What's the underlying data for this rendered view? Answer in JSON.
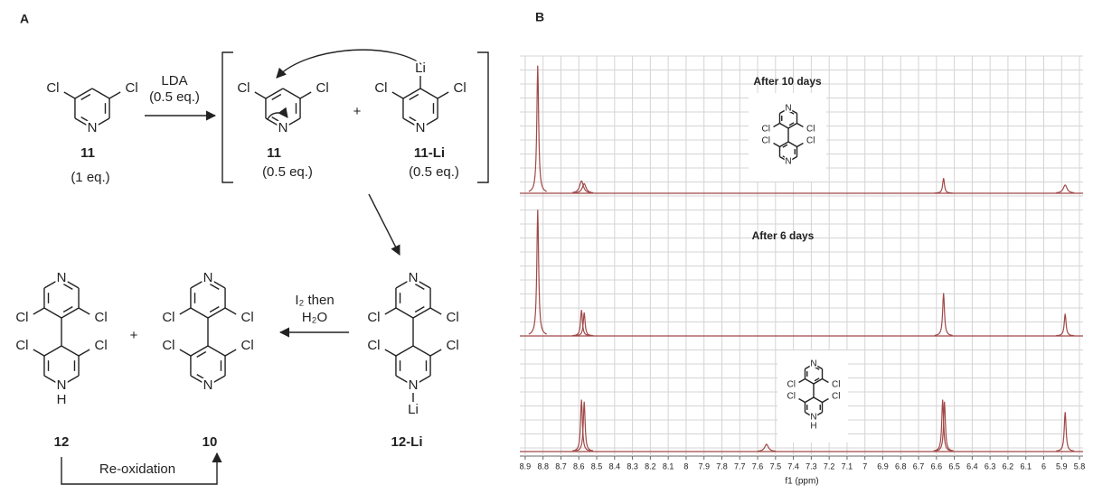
{
  "panel_a": {
    "label": "A",
    "reactant": {
      "atoms": [
        "Cl",
        "Cl",
        "N"
      ],
      "label": "11",
      "amount": "(1 eq.)"
    },
    "step1": {
      "reagent": "LDA",
      "amount": "(0.5 eq.)"
    },
    "intermediate_1": {
      "atoms": [
        "Cl",
        "Cl",
        "N"
      ],
      "label": "11",
      "amount": "(0.5 eq.)"
    },
    "plus_1": "+",
    "intermediate_2": {
      "atoms": [
        "Li",
        "Cl",
        "Cl",
        "N"
      ],
      "label": "11-Li",
      "amount": "(0.5 eq.)"
    },
    "intermediate_3": {
      "atoms": [
        "N",
        "Cl",
        "Cl",
        "Cl",
        "Cl",
        "N",
        "Li"
      ],
      "label": "12-Li"
    },
    "step2": {
      "reagent_1": "I₂ then",
      "reagent_2": "H₂O"
    },
    "product_10": {
      "atoms": [
        "N",
        "Cl",
        "Cl",
        "Cl",
        "Cl",
        "N"
      ],
      "label": "10"
    },
    "plus_2": "+",
    "product_12": {
      "atoms": [
        "N",
        "Cl",
        "Cl",
        "Cl",
        "Cl",
        "N",
        "H"
      ],
      "label": "12"
    },
    "step3": "Re-oxidation"
  },
  "panel_b": {
    "label": "B",
    "x_axis": {
      "label": "f1 (ppm)",
      "lim": [
        8.93,
        5.78
      ],
      "ticks": [
        8.9,
        8.8,
        8.7,
        8.6,
        8.5,
        8.4,
        8.3,
        8.2,
        8.1,
        8.0,
        7.9,
        7.8,
        7.7,
        7.6,
        7.5,
        7.4,
        7.3,
        7.2,
        7.1,
        7.0,
        6.9,
        6.8,
        6.7,
        6.6,
        6.5,
        6.4,
        6.3,
        6.2,
        6.1,
        6.0,
        5.9,
        5.8
      ]
    },
    "spectra": [
      {
        "title": "After 10 days",
        "inset_atoms": [
          "N",
          "Cl",
          "Cl",
          "Cl",
          "Cl",
          "N"
        ],
        "peaks": [
          {
            "ppm": 8.83,
            "intensity": 0.93
          },
          {
            "ppm": 8.585,
            "intensity": 0.09
          },
          {
            "ppm": 8.57,
            "intensity": 0.07
          },
          {
            "ppm": 6.56,
            "intensity": 0.11
          },
          {
            "ppm": 5.88,
            "intensity": 0.06
          }
        ]
      },
      {
        "title": "After 6 days",
        "peaks": [
          {
            "ppm": 8.83,
            "intensity": 0.97
          },
          {
            "ppm": 8.585,
            "intensity": 0.2
          },
          {
            "ppm": 8.57,
            "intensity": 0.18
          },
          {
            "ppm": 6.56,
            "intensity": 0.33
          },
          {
            "ppm": 5.88,
            "intensity": 0.17
          }
        ]
      },
      {
        "inset_atoms": [
          "N",
          "Cl",
          "Cl",
          "Cl",
          "Cl",
          "N",
          "H"
        ],
        "peaks": [
          {
            "ppm": 8.585,
            "intensity": 0.5
          },
          {
            "ppm": 8.57,
            "intensity": 0.48
          },
          {
            "ppm": 7.55,
            "intensity": 0.07
          },
          {
            "ppm": 6.565,
            "intensity": 0.5
          },
          {
            "ppm": 6.555,
            "intensity": 0.48
          },
          {
            "ppm": 5.88,
            "intensity": 0.38
          }
        ]
      }
    ]
  }
}
